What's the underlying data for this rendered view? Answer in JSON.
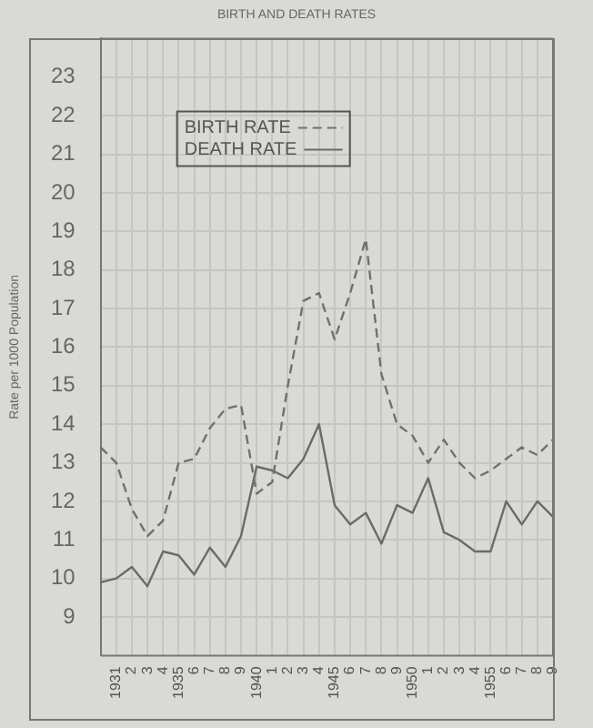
{
  "chart_data": {
    "type": "line",
    "title": "BIRTH AND DEATH RATES",
    "ylabel": "Rate per 1000 Population",
    "categories": [
      null,
      "1931",
      "2",
      "3",
      "4",
      "1935",
      "6",
      "7",
      "8",
      "9",
      "1940",
      "1",
      "2",
      "3",
      "4",
      "1945",
      "6",
      "7",
      "8",
      "9",
      "1950",
      "1",
      "2",
      "3",
      "4",
      "1955",
      "6",
      "7",
      "8",
      "9"
    ],
    "series": [
      {
        "name": "BIRTH RATE",
        "color": "#707070",
        "line_style": "dashed",
        "values": [
          13.4,
          13.0,
          11.8,
          11.1,
          11.5,
          13.0,
          13.1,
          13.9,
          14.4,
          14.5,
          12.2,
          12.5,
          15.0,
          17.2,
          17.4,
          16.2,
          17.4,
          18.8,
          15.3,
          14.0,
          13.7,
          13.0,
          13.6,
          13.0,
          12.6,
          12.8,
          13.1,
          13.4,
          13.2,
          13.6
        ]
      },
      {
        "name": "DEATH RATE",
        "color": "#6a6a6a",
        "line_style": "solid",
        "values": [
          9.9,
          10.0,
          10.3,
          9.8,
          10.7,
          10.6,
          10.1,
          10.8,
          10.3,
          11.1,
          12.9,
          12.8,
          12.6,
          13.1,
          14.0,
          11.9,
          11.4,
          11.7,
          10.9,
          11.9,
          11.7,
          12.6,
          11.2,
          11.0,
          10.7,
          10.7,
          12.0,
          11.4,
          12.0,
          11.6
        ]
      }
    ],
    "ylim": [
      8,
      24
    ],
    "yticks": [
      9,
      10,
      11,
      12,
      13,
      14,
      15,
      16,
      17,
      18,
      19,
      20,
      21,
      22,
      23
    ],
    "grid": true,
    "legend": "top left",
    "marker": "none"
  }
}
